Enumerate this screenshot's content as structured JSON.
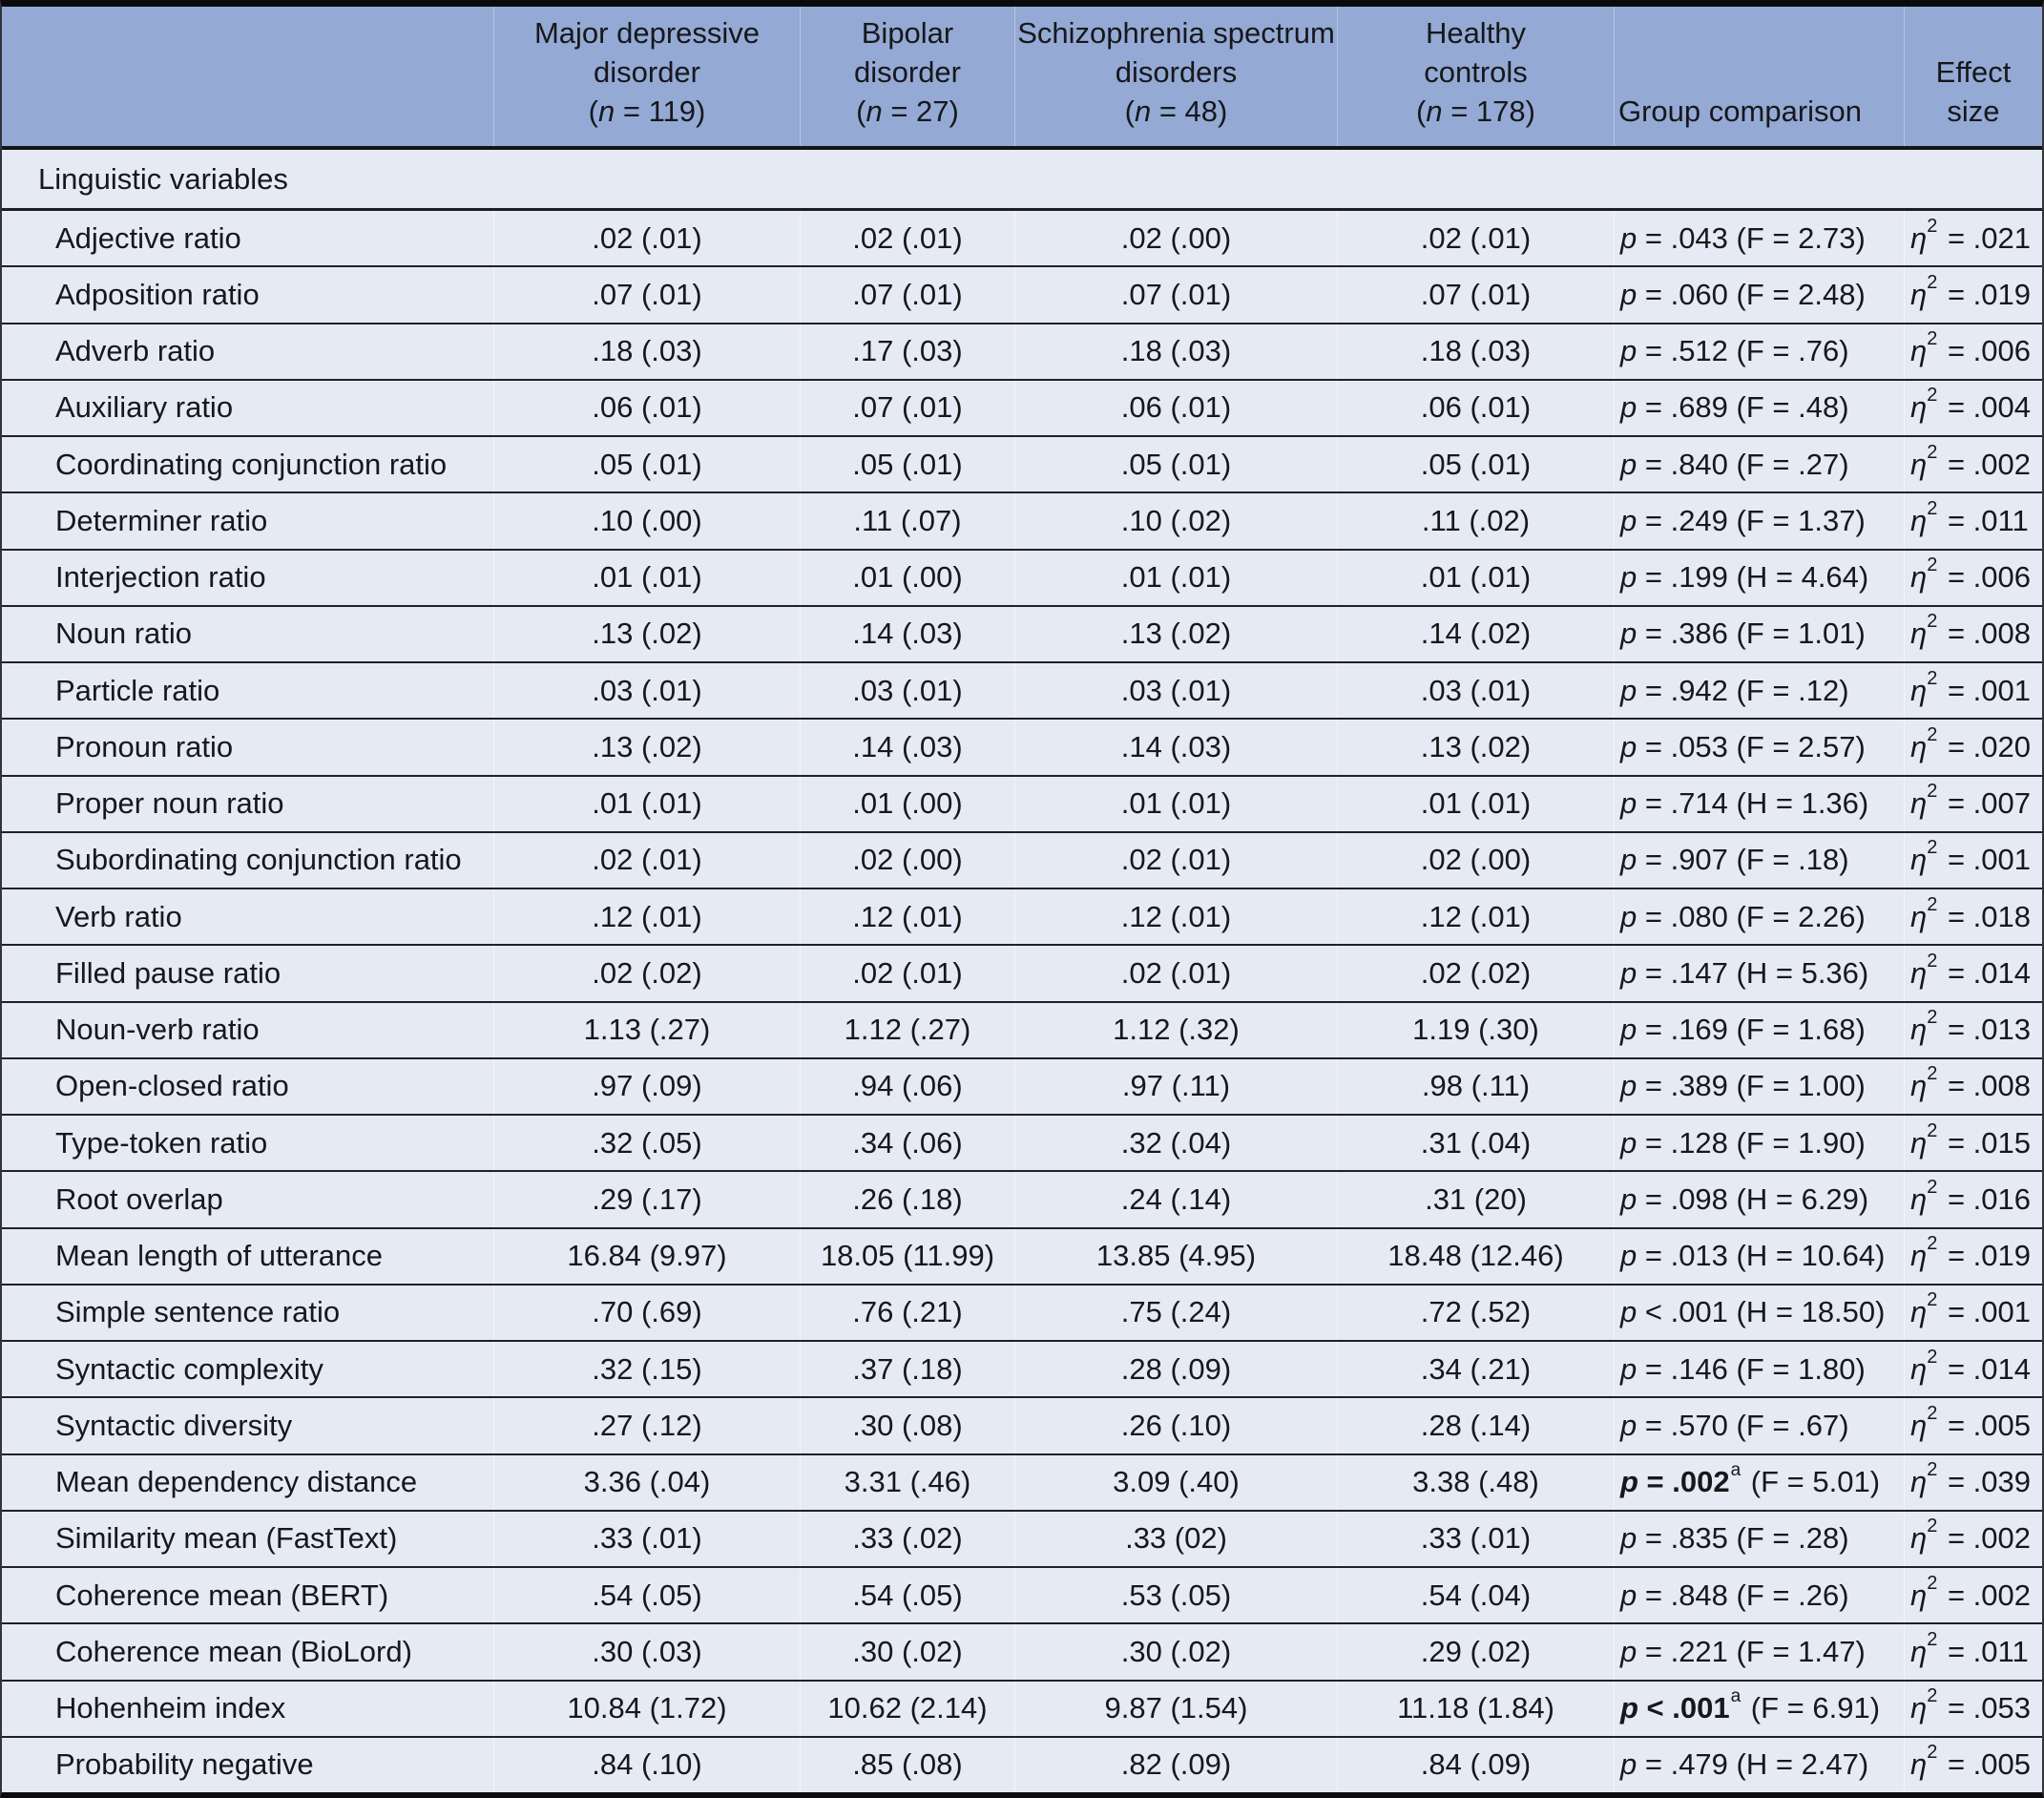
{
  "symbols": {
    "n_italic": "n",
    "p_italic": "p",
    "eta": "η",
    "eta_exponent": "2",
    "open_paren": "(",
    "close_paren": ")",
    "equals": "=",
    "footnote_marker": "a"
  },
  "table": {
    "section_label": "Linguistic variables",
    "header": {
      "group_columns": [
        {
          "lines": [
            "Major depressive",
            "disorder"
          ],
          "n": "119"
        },
        {
          "lines": [
            "Bipolar",
            "disorder"
          ],
          "n": "27"
        },
        {
          "lines": [
            "Schizophrenia spectrum",
            "disorders"
          ],
          "n": "48"
        },
        {
          "lines": [
            "Healthy",
            "controls"
          ],
          "n": "178"
        }
      ],
      "comparison_column": {
        "lines": [
          "Group comparison"
        ]
      },
      "effect_column": {
        "lines": [
          "Effect",
          "size"
        ]
      }
    },
    "rows": [
      {
        "label": "Adjective ratio",
        "values": [
          ".02 (.01)",
          ".02 (.01)",
          ".02 (.00)",
          ".02 (.01)"
        ],
        "p": "= .043",
        "p_sup": "",
        "p_bold": false,
        "stat": "(F = 2.73)",
        "effect": "= .021"
      },
      {
        "label": "Adposition ratio",
        "values": [
          ".07 (.01)",
          ".07 (.01)",
          ".07 (.01)",
          ".07 (.01)"
        ],
        "p": "= .060",
        "p_sup": "",
        "p_bold": false,
        "stat": "(F = 2.48)",
        "effect": "= .019"
      },
      {
        "label": "Adverb ratio",
        "values": [
          ".18 (.03)",
          ".17 (.03)",
          ".18 (.03)",
          ".18 (.03)"
        ],
        "p": "= .512",
        "p_sup": "",
        "p_bold": false,
        "stat": "(F = .76)",
        "effect": "= .006"
      },
      {
        "label": "Auxiliary ratio",
        "values": [
          ".06 (.01)",
          ".07 (.01)",
          ".06 (.01)",
          ".06 (.01)"
        ],
        "p": "= .689",
        "p_sup": "",
        "p_bold": false,
        "stat": "(F = .48)",
        "effect": "= .004"
      },
      {
        "label": "Coordinating conjunction ratio",
        "values": [
          ".05 (.01)",
          ".05 (.01)",
          ".05 (.01)",
          ".05 (.01)"
        ],
        "p": "= .840",
        "p_sup": "",
        "p_bold": false,
        "stat": "(F = .27)",
        "effect": "= .002"
      },
      {
        "label": "Determiner ratio",
        "values": [
          ".10 (.00)",
          ".11 (.07)",
          ".10 (.02)",
          ".11 (.02)"
        ],
        "p": "= .249",
        "p_sup": "",
        "p_bold": false,
        "stat": "(F = 1.37)",
        "effect": "= .011"
      },
      {
        "label": "Interjection ratio",
        "values": [
          ".01 (.01)",
          ".01 (.00)",
          ".01 (.01)",
          ".01 (.01)"
        ],
        "p": "= .199",
        "p_sup": "",
        "p_bold": false,
        "stat": "(H = 4.64)",
        "effect": "= .006"
      },
      {
        "label": "Noun ratio",
        "values": [
          ".13 (.02)",
          ".14 (.03)",
          ".13 (.02)",
          ".14 (.02)"
        ],
        "p": "= .386",
        "p_sup": "",
        "p_bold": false,
        "stat": "(F = 1.01)",
        "effect": "= .008"
      },
      {
        "label": "Particle ratio",
        "values": [
          ".03 (.01)",
          ".03 (.01)",
          ".03 (.01)",
          ".03 (.01)"
        ],
        "p": "= .942",
        "p_sup": "",
        "p_bold": false,
        "stat": "(F = .12)",
        "effect": "= .001"
      },
      {
        "label": "Pronoun ratio",
        "values": [
          ".13 (.02)",
          ".14 (.03)",
          ".14 (.03)",
          ".13 (.02)"
        ],
        "p": "= .053",
        "p_sup": "",
        "p_bold": false,
        "stat": "(F = 2.57)",
        "effect": "= .020"
      },
      {
        "label": "Proper noun ratio",
        "values": [
          ".01 (.01)",
          ".01 (.00)",
          ".01 (.01)",
          ".01 (.01)"
        ],
        "p": "= .714",
        "p_sup": "",
        "p_bold": false,
        "stat": "(H = 1.36)",
        "effect": "= .007"
      },
      {
        "label": "Subordinating conjunction ratio",
        "values": [
          ".02 (.01)",
          ".02 (.00)",
          ".02 (.01)",
          ".02 (.00)"
        ],
        "p": "= .907",
        "p_sup": "",
        "p_bold": false,
        "stat": "(F = .18)",
        "effect": "= .001"
      },
      {
        "label": "Verb ratio",
        "values": [
          ".12 (.01)",
          ".12 (.01)",
          ".12 (.01)",
          ".12 (.01)"
        ],
        "p": "= .080",
        "p_sup": "",
        "p_bold": false,
        "stat": "(F = 2.26)",
        "effect": "= .018"
      },
      {
        "label": "Filled pause ratio",
        "values": [
          ".02 (.02)",
          ".02 (.01)",
          ".02 (.01)",
          ".02 (.02)"
        ],
        "p": "= .147",
        "p_sup": "",
        "p_bold": false,
        "stat": "(H = 5.36)",
        "effect": "= .014"
      },
      {
        "label": "Noun-verb ratio",
        "values": [
          "1.13 (.27)",
          "1.12 (.27)",
          "1.12 (.32)",
          "1.19 (.30)"
        ],
        "p": "= .169",
        "p_sup": "",
        "p_bold": false,
        "stat": "(F = 1.68)",
        "effect": "= .013"
      },
      {
        "label": "Open-closed ratio",
        "values": [
          ".97 (.09)",
          ".94 (.06)",
          ".97 (.11)",
          ".98 (.11)"
        ],
        "p": "= .389",
        "p_sup": "",
        "p_bold": false,
        "stat": "(F = 1.00)",
        "effect": "= .008"
      },
      {
        "label": "Type-token ratio",
        "values": [
          ".32 (.05)",
          ".34 (.06)",
          ".32 (.04)",
          ".31 (.04)"
        ],
        "p": "= .128",
        "p_sup": "",
        "p_bold": false,
        "stat": "(F = 1.90)",
        "effect": "= .015"
      },
      {
        "label": "Root overlap",
        "values": [
          ".29 (.17)",
          ".26 (.18)",
          ".24 (.14)",
          ".31 (20)"
        ],
        "p": "= .098",
        "p_sup": "",
        "p_bold": false,
        "stat": "(H = 6.29)",
        "effect": "= .016"
      },
      {
        "label": "Mean length of utterance",
        "values": [
          "16.84 (9.97)",
          "18.05 (11.99)",
          "13.85 (4.95)",
          "18.48 (12.46)"
        ],
        "p": "= .013",
        "p_sup": "",
        "p_bold": false,
        "stat": "(H = 10.64)",
        "effect": "= .019"
      },
      {
        "label": "Simple sentence ratio",
        "values": [
          ".70 (.69)",
          ".76 (.21)",
          ".75 (.24)",
          ".72 (.52)"
        ],
        "p": "< .001",
        "p_sup": "",
        "p_bold": false,
        "stat": "(H = 18.50)",
        "effect": "= .001"
      },
      {
        "label": "Syntactic complexity",
        "values": [
          ".32 (.15)",
          ".37 (.18)",
          ".28 (.09)",
          ".34 (.21)"
        ],
        "p": "= .146",
        "p_sup": "",
        "p_bold": false,
        "stat": "(F = 1.80)",
        "effect": "= .014"
      },
      {
        "label": "Syntactic diversity",
        "values": [
          ".27 (.12)",
          ".30 (.08)",
          ".26 (.10)",
          ".28 (.14)"
        ],
        "p": "= .570",
        "p_sup": "",
        "p_bold": false,
        "stat": "(F = .67)",
        "effect": "= .005"
      },
      {
        "label": "Mean dependency distance",
        "values": [
          "3.36 (.04)",
          "3.31 (.46)",
          "3.09 (.40)",
          "3.38 (.48)"
        ],
        "p": "= .002",
        "p_sup": "a",
        "p_bold": true,
        "stat": "(F = 5.01)",
        "effect": "= .039"
      },
      {
        "label": "Similarity mean (FastText)",
        "values": [
          ".33 (.01)",
          ".33 (.02)",
          ".33 (02)",
          ".33 (.01)"
        ],
        "p": "= .835",
        "p_sup": "",
        "p_bold": false,
        "stat": "(F = .28)",
        "effect": "= .002"
      },
      {
        "label": "Coherence mean (BERT)",
        "values": [
          ".54 (.05)",
          ".54 (.05)",
          ".53 (.05)",
          ".54 (.04)"
        ],
        "p": "= .848",
        "p_sup": "",
        "p_bold": false,
        "stat": "(F = .26)",
        "effect": "= .002"
      },
      {
        "label": "Coherence mean (BioLord)",
        "values": [
          ".30 (.03)",
          ".30 (.02)",
          ".30 (.02)",
          ".29 (.02)"
        ],
        "p": "= .221",
        "p_sup": "",
        "p_bold": false,
        "stat": "(F = 1.47)",
        "effect": "= .011"
      },
      {
        "label": "Hohenheim index",
        "values": [
          "10.84 (1.72)",
          "10.62 (2.14)",
          "9.87 (1.54)",
          "11.18 (1.84)"
        ],
        "p": "< .001",
        "p_sup": "a",
        "p_bold": true,
        "stat": "(F = 6.91)",
        "effect": "= .053"
      },
      {
        "label": "Probability negative",
        "values": [
          ".84 (.10)",
          ".85 (.08)",
          ".82 (.09)",
          ".84 (.09)"
        ],
        "p": "= .479",
        "p_sup": "",
        "p_bold": false,
        "stat": "(H = 2.47)",
        "effect": "= .005"
      }
    ],
    "colors": {
      "header_bg": "#94aad4",
      "row_bg": "#e6eaf4",
      "rule": "#1d1d24",
      "text": "#17171c"
    }
  }
}
